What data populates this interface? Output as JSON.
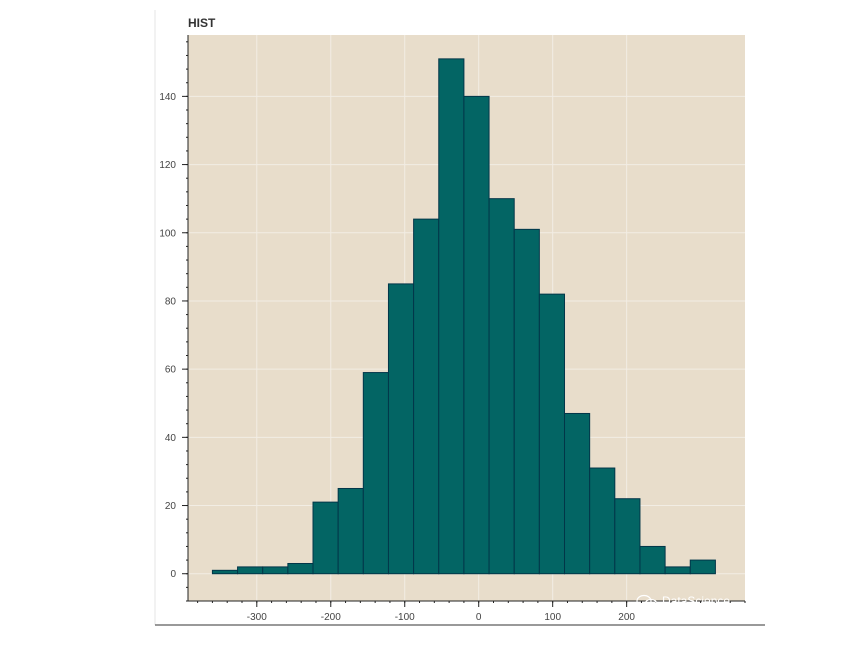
{
  "chart_data": {
    "type": "bar",
    "title": "HIST",
    "xlabel": "",
    "ylabel": "",
    "bin_edges": [
      -360,
      -326,
      -292,
      -258,
      -224,
      -190,
      -156,
      -122,
      -88,
      -54,
      -20,
      14,
      48,
      82,
      116,
      150,
      184,
      218,
      252,
      286
    ],
    "values": [
      1,
      2,
      2,
      3,
      21,
      25,
      59,
      85,
      104,
      151,
      140,
      110,
      101,
      82,
      47,
      31,
      22,
      8,
      2,
      4
    ],
    "xlim": [
      -393,
      360
    ],
    "ylim": [
      -8,
      158
    ],
    "x_ticks": [
      -300,
      -200,
      -100,
      0,
      100,
      200
    ],
    "x_tick_labels": [
      "-300",
      "-200",
      "-100",
      "0",
      "100",
      "200"
    ],
    "y_ticks": [
      0,
      20,
      40,
      60,
      80,
      100,
      120,
      140
    ],
    "y_tick_labels": [
      "0",
      "20",
      "40",
      "60",
      "80",
      "100",
      "120",
      "140"
    ],
    "grid": true,
    "legend": "none",
    "colors": {
      "bar_fill": "#036564",
      "bar_edge": "#033649",
      "plot_background": "#E8DDCB",
      "grid": "#F2EDE4"
    }
  },
  "watermark": {
    "line1": "DataScience",
    "line2": "DataScience"
  }
}
